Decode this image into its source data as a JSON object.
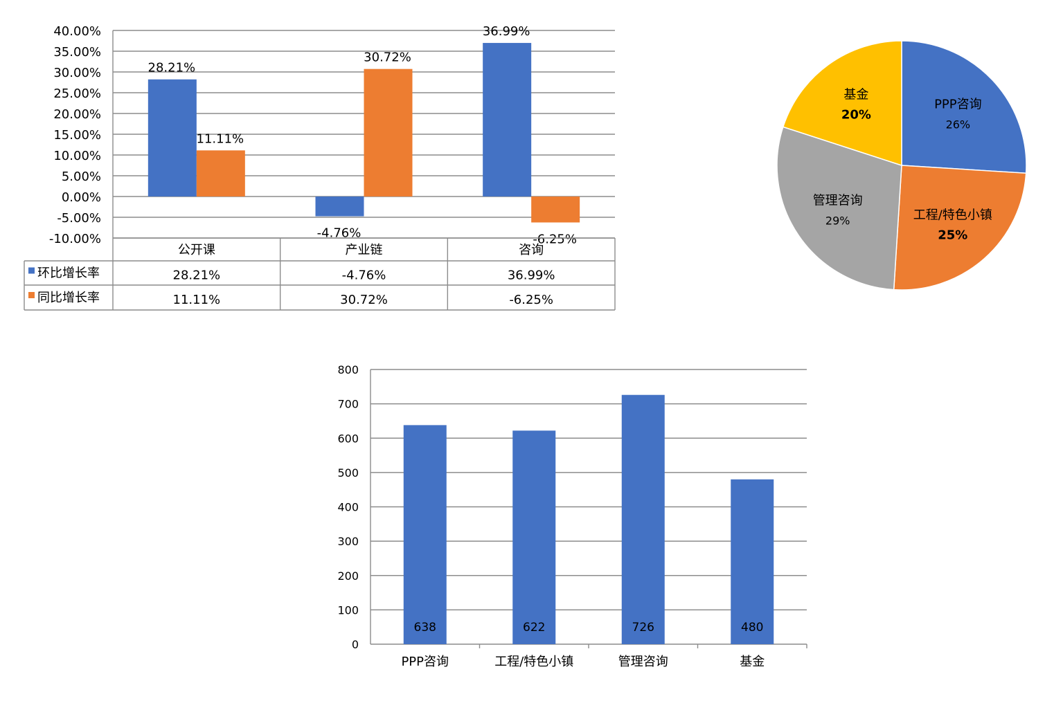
{
  "colors": {
    "blue": "#4472C4",
    "orange": "#ED7D31",
    "gray": "#A5A5A5",
    "gold": "#FFC000",
    "grid": "#8C8C8C",
    "axis": "#7F7F7F"
  },
  "chart_data": [
    {
      "type": "bar",
      "categories": [
        "公开课",
        "产业链",
        "咨询"
      ],
      "series": [
        {
          "name": "环比增长率",
          "color": "#4472C4",
          "values": [
            28.21,
            -4.76,
            36.99
          ],
          "labels": [
            "28.21%",
            "-4.76%",
            "36.99%"
          ]
        },
        {
          "name": "同比增长率",
          "color": "#ED7D31",
          "values": [
            11.11,
            30.72,
            -6.25
          ],
          "labels": [
            "11.11%",
            "30.72%",
            "-6.25%"
          ]
        }
      ],
      "ylim": [
        -10,
        40
      ],
      "yticks": [
        "40.00%",
        "35.00%",
        "30.00%",
        "25.00%",
        "20.00%",
        "15.00%",
        "10.00%",
        "5.00%",
        "0.00%",
        "-5.00%",
        "-10.00%"
      ],
      "grid": true,
      "data_table": true
    },
    {
      "type": "pie",
      "slices": [
        {
          "label": "PPP咨询",
          "value": 26,
          "pct": "26%",
          "color": "#4472C4"
        },
        {
          "label": "工程/特色小镇",
          "value": 25,
          "pct": "25%",
          "color": "#ED7D31"
        },
        {
          "label": "管理咨询",
          "value": 29,
          "pct": "29%",
          "color": "#A5A5A5"
        },
        {
          "label": "基金",
          "value": 20,
          "pct": "20%",
          "color": "#FFC000"
        }
      ]
    },
    {
      "type": "bar",
      "categories": [
        "PPP咨询",
        "工程/特色小镇",
        "管理咨询",
        "基金"
      ],
      "values": [
        638,
        622,
        726,
        480
      ],
      "labels": [
        "638",
        "622",
        "726",
        "480"
      ],
      "color": "#4472C4",
      "ylim": [
        0,
        800
      ],
      "yticks": [
        "800",
        "700",
        "600",
        "500",
        "400",
        "300",
        "200",
        "100",
        "0"
      ],
      "grid": true
    }
  ]
}
